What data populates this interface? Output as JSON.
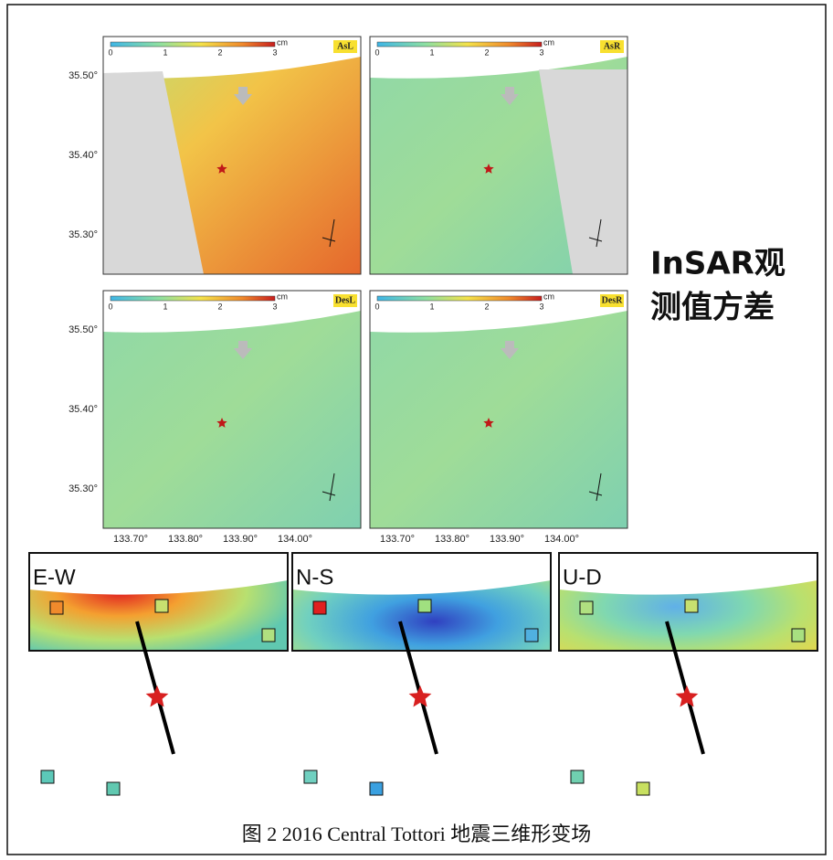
{
  "panels": [
    {
      "label": "AsL"
    },
    {
      "label": "AsR"
    },
    {
      "label": "DesL"
    },
    {
      "label": "DesR"
    }
  ],
  "colorbar": {
    "ticks": [
      "0",
      "1",
      "2",
      "3"
    ],
    "unit": "cm"
  },
  "lat_ticks": [
    "35.50°",
    "35.40°",
    "35.30°"
  ],
  "lon_ticks": [
    "133.70°",
    "133.80°",
    "133.90°",
    "134.00°"
  ],
  "side_label": [
    "InSAR观",
    "测值方差"
  ],
  "components": [
    "E-W",
    "N-S",
    "U-D"
  ],
  "caption": "图 2 2016 Central Tottori 地震三维形变场"
}
